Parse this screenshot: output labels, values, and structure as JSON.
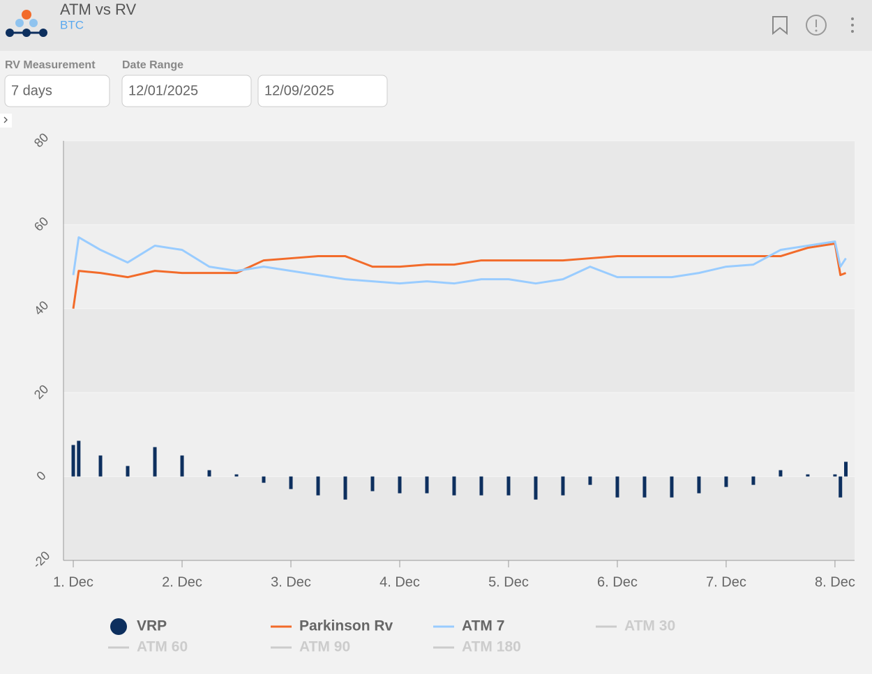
{
  "header": {
    "title": "ATM vs RV",
    "subtitle": "BTC"
  },
  "controls": {
    "rv_label": "RV Measurement",
    "rv_value": "7 days",
    "date_label": "Date Range",
    "date_from": "12/01/2025",
    "date_to": "12/09/2025"
  },
  "chart_data": {
    "type": "line",
    "x": [
      1,
      1.05,
      1.25,
      1.5,
      1.75,
      2,
      2.25,
      2.5,
      2.75,
      3,
      3.25,
      3.5,
      3.75,
      4,
      4.25,
      4.5,
      4.75,
      5,
      5.25,
      5.5,
      5.75,
      6,
      6.25,
      6.5,
      6.75,
      7,
      7.25,
      7.5,
      7.75,
      8,
      8.05,
      8.1
    ],
    "xlim": [
      0.91,
      8.18
    ],
    "xticks": [
      {
        "value": 1,
        "label": "1. Dec"
      },
      {
        "value": 2,
        "label": "2. Dec"
      },
      {
        "value": 3,
        "label": "3. Dec"
      },
      {
        "value": 4,
        "label": "4. Dec"
      },
      {
        "value": 5,
        "label": "5. Dec"
      },
      {
        "value": 6,
        "label": "6. Dec"
      },
      {
        "value": 7,
        "label": "7. Dec"
      },
      {
        "value": 8,
        "label": "8. Dec"
      }
    ],
    "ylim": [
      -20,
      80
    ],
    "yticks": [
      -20,
      0,
      20,
      40,
      60,
      80
    ],
    "series": [
      {
        "name": "VRP",
        "kind": "bar",
        "color": "#0d2f5e",
        "values": [
          7.5,
          8.5,
          5,
          2.5,
          7,
          5,
          1.5,
          0.5,
          -1.5,
          -3,
          -4.5,
          -5.5,
          -3.5,
          -4,
          -4,
          -4.5,
          -4.5,
          -4.5,
          -5.5,
          -4.5,
          -2,
          -5,
          -5,
          -5,
          -4,
          -2.5,
          -2,
          1.5,
          0.5,
          0.5,
          -5,
          3.5
        ]
      },
      {
        "name": "Parkinson Rv",
        "kind": "line",
        "color": "#f26b2a",
        "values": [
          40,
          49,
          48.5,
          47.5,
          49,
          48.5,
          48.5,
          48.5,
          51.5,
          52,
          52.5,
          52.5,
          50,
          50,
          50.5,
          50.5,
          51.5,
          51.5,
          51.5,
          51.5,
          52,
          52.5,
          52.5,
          52.5,
          52.5,
          52.5,
          52.5,
          52.5,
          54.5,
          55.5,
          48,
          48.5
        ]
      },
      {
        "name": "ATM 7",
        "kind": "line",
        "color": "#99ccff",
        "values": [
          48,
          57,
          54,
          51,
          55,
          54,
          50,
          49,
          50,
          49,
          48,
          47,
          46.5,
          46,
          46.5,
          46,
          47,
          47,
          46,
          47,
          50,
          47.5,
          47.5,
          47.5,
          48.5,
          50,
          50.5,
          54,
          55,
          56,
          50,
          52
        ]
      }
    ],
    "inactive_series": [
      "ATM 30",
      "ATM 60",
      "ATM 90",
      "ATM 180"
    ],
    "inactive_color": "#cccccc"
  }
}
